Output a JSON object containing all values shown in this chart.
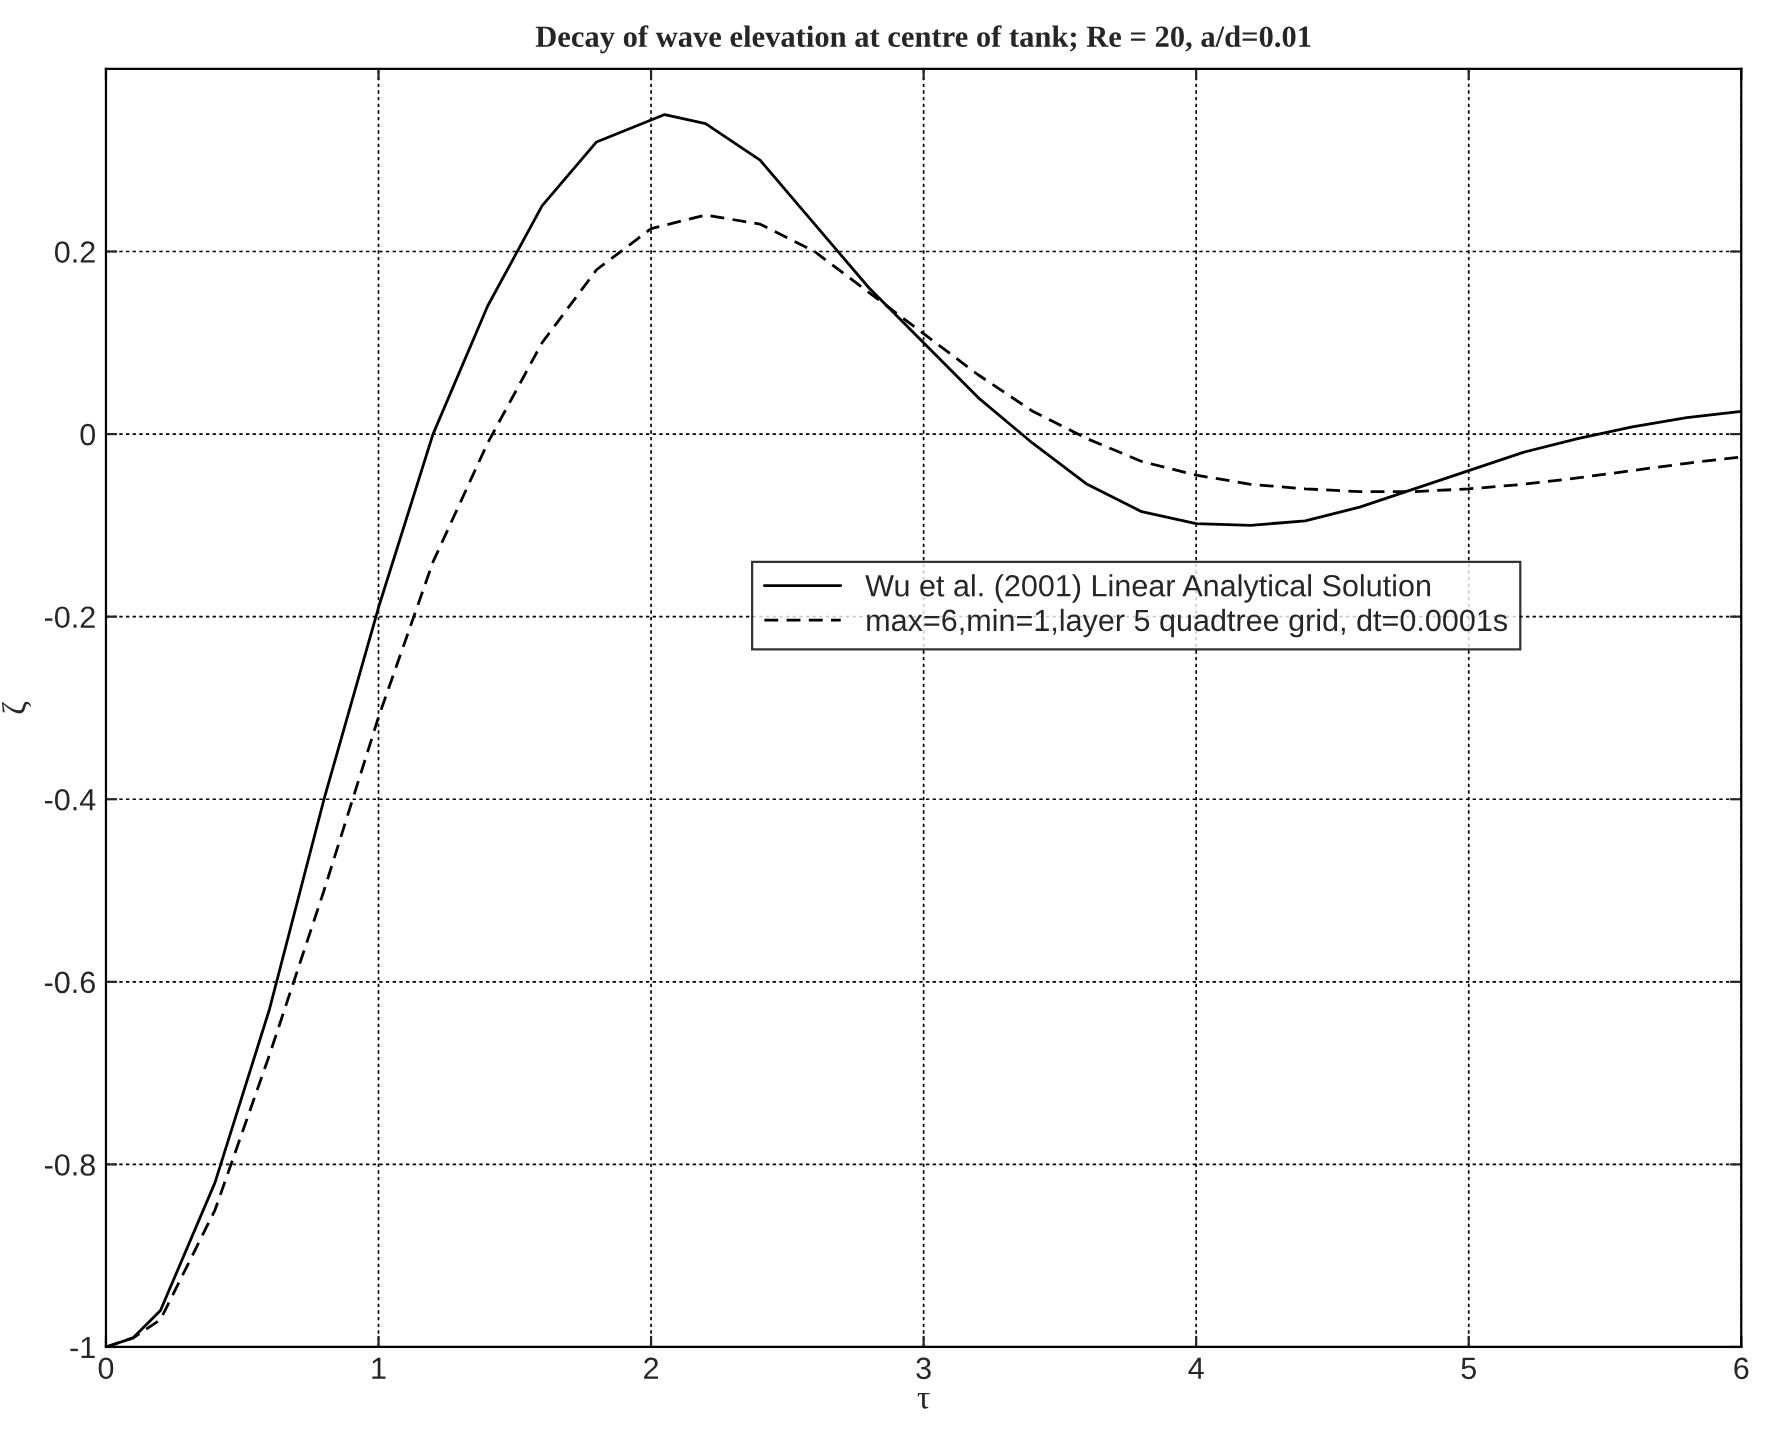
{
  "chart_data": {
    "type": "line",
    "title": "Decay of wave elevation at centre of tank; Re = 20, a/d=0.01",
    "xlabel": "τ",
    "ylabel": "ζ",
    "xlim": [
      0,
      6
    ],
    "xticks": [
      0,
      1,
      2,
      3,
      4,
      5,
      6
    ],
    "ylim": [
      -1,
      0.4
    ],
    "yticks": [
      -1,
      -0.8,
      -0.6,
      -0.4,
      -0.2,
      0,
      0.2
    ],
    "grid": true,
    "legend": "center",
    "marker": "none",
    "series": [
      {
        "name": "Wu et al. (2001) Linear Analytical Solution",
        "color": "#000000",
        "line_style": "solid",
        "x": [
          0,
          0.1,
          0.2,
          0.4,
          0.6,
          0.8,
          1.0,
          1.2,
          1.4,
          1.6,
          1.8,
          2.05,
          2.2,
          2.4,
          2.6,
          2.8,
          3.0,
          3.2,
          3.4,
          3.6,
          3.8,
          4.0,
          4.2,
          4.4,
          4.6,
          4.8,
          5.0,
          5.2,
          5.4,
          5.6,
          5.8,
          6.0
        ],
        "values": [
          -1,
          -0.99,
          -0.96,
          -0.82,
          -0.63,
          -0.4,
          -0.19,
          0.0,
          0.14,
          0.25,
          0.32,
          0.35,
          0.34,
          0.3,
          0.23,
          0.16,
          0.1,
          0.04,
          -0.01,
          -0.055,
          -0.085,
          -0.098,
          -0.1,
          -0.095,
          -0.08,
          -0.06,
          -0.04,
          -0.02,
          -0.005,
          0.008,
          0.018,
          0.025
        ]
      },
      {
        "name": "max=6,min=1,layer 5 quadtree grid, dt=0.0001s",
        "color": "#000000",
        "line_style": "dashed",
        "x": [
          0,
          0.1,
          0.2,
          0.4,
          0.6,
          0.8,
          1.0,
          1.2,
          1.4,
          1.6,
          1.8,
          2.0,
          2.2,
          2.4,
          2.6,
          2.8,
          3.0,
          3.2,
          3.4,
          3.6,
          3.8,
          4.0,
          4.2,
          4.4,
          4.6,
          4.8,
          5.0,
          5.2,
          5.4,
          5.6,
          5.8,
          6.0
        ],
        "values": [
          -1,
          -0.99,
          -0.97,
          -0.85,
          -0.68,
          -0.5,
          -0.31,
          -0.14,
          -0.01,
          0.1,
          0.18,
          0.225,
          0.24,
          0.23,
          0.2,
          0.155,
          0.11,
          0.065,
          0.025,
          -0.005,
          -0.03,
          -0.045,
          -0.055,
          -0.06,
          -0.063,
          -0.063,
          -0.06,
          -0.055,
          -0.048,
          -0.04,
          -0.032,
          -0.025
        ]
      }
    ]
  }
}
